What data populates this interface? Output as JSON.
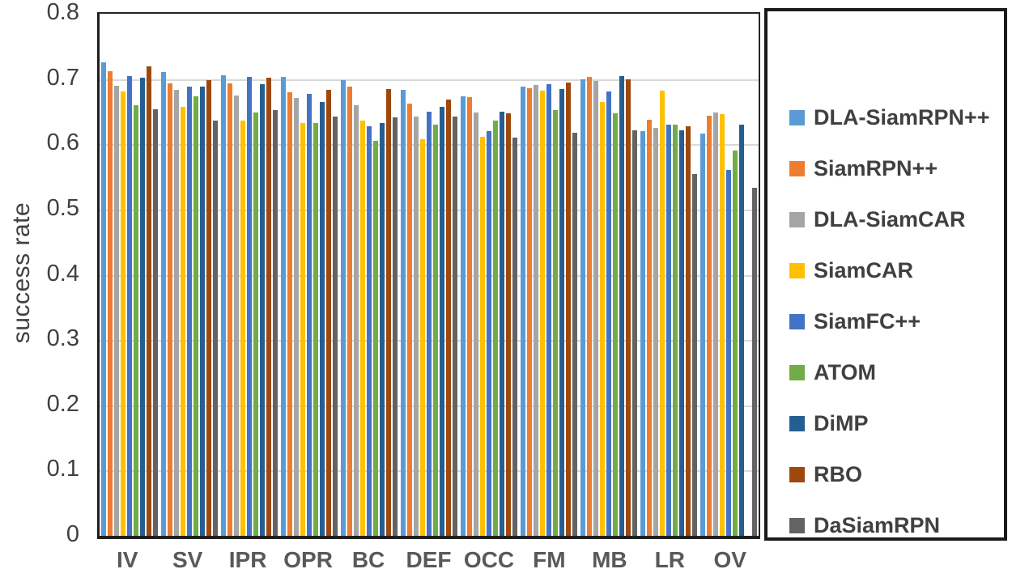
{
  "figure": {
    "ylabel": "success rate"
  },
  "chart_data": {
    "type": "bar",
    "title": "",
    "xlabel": "",
    "ylabel": "success rate",
    "ylim": [
      0,
      0.8
    ],
    "yticks": [
      "0",
      "0.1",
      "0.2",
      "0.3",
      "0.4",
      "0.5",
      "0.6",
      "0.7",
      "0.8"
    ],
    "grid": true,
    "legend_position": "right-box",
    "categories": [
      "IV",
      "SV",
      "IPR",
      "OPR",
      "BC",
      "DEF",
      "OCC",
      "FM",
      "MB",
      "LR",
      "OV"
    ],
    "series": [
      {
        "name": "DLA-SiamRPN++",
        "color": "#5B9BD5",
        "values": [
          0.725,
          0.711,
          0.706,
          0.703,
          0.698,
          0.683,
          0.673,
          0.689,
          0.7,
          0.62,
          0.616
        ]
      },
      {
        "name": "SiamRPN++",
        "color": "#ED7D31",
        "values": [
          0.712,
          0.693,
          0.693,
          0.68,
          0.688,
          0.662,
          0.672,
          0.686,
          0.703,
          0.638,
          0.644
        ]
      },
      {
        "name": "DLA-SiamCAR",
        "color": "#A5A5A5",
        "values": [
          0.69,
          0.683,
          0.675,
          0.671,
          0.66,
          0.643,
          0.649,
          0.691,
          0.697,
          0.625,
          0.649
        ]
      },
      {
        "name": "SiamCAR",
        "color": "#FFC000",
        "values": [
          0.681,
          0.658,
          0.636,
          0.632,
          0.636,
          0.608,
          0.611,
          0.682,
          0.665,
          0.682,
          0.646
        ]
      },
      {
        "name": "SiamFC++",
        "color": "#4472C4",
        "values": [
          0.705,
          0.688,
          0.703,
          0.677,
          0.628,
          0.65,
          0.62,
          0.692,
          0.681,
          0.63,
          0.561
        ]
      },
      {
        "name": "ATOM",
        "color": "#70AD47",
        "values": [
          0.66,
          0.673,
          0.649,
          0.633,
          0.605,
          0.63,
          0.636,
          0.653,
          0.648,
          0.63,
          0.59
        ]
      },
      {
        "name": "DiMP",
        "color": "#255E91",
        "values": [
          0.702,
          0.689,
          0.692,
          0.665,
          0.633,
          0.658,
          0.65,
          0.685,
          0.705,
          0.621,
          0.63
        ]
      },
      {
        "name": "RBO",
        "color": "#9E480E",
        "values": [
          0.72,
          0.698,
          0.702,
          0.684,
          0.685,
          0.668,
          0.647,
          0.694,
          0.7,
          0.628,
          null
        ]
      },
      {
        "name": "DaSiamRPN",
        "color": "#636363",
        "values": [
          0.654,
          0.636,
          0.652,
          0.643,
          0.641,
          0.643,
          0.61,
          0.618,
          0.621,
          0.555,
          0.533
        ]
      }
    ]
  }
}
